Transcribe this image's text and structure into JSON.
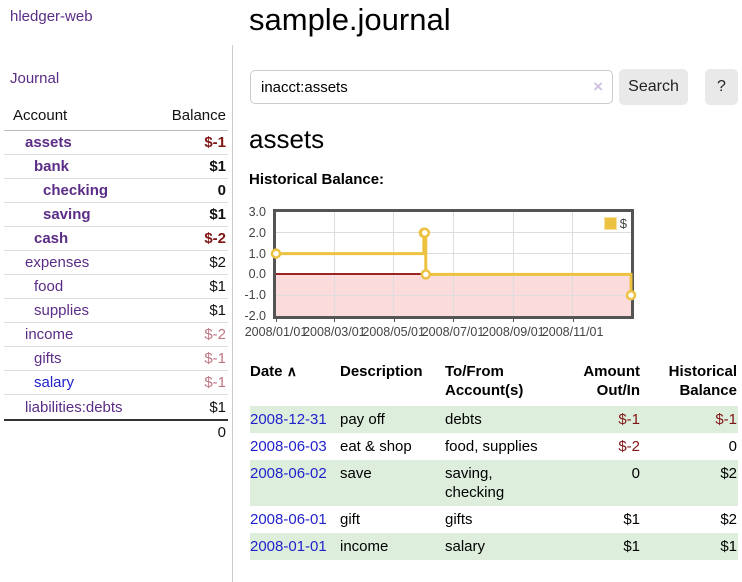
{
  "app": {
    "brand": "hledger-web",
    "nav": {
      "journal": "Journal"
    }
  },
  "colors": {
    "brand_purple": "#5b2d86",
    "link_blue": "#2222cc",
    "negative_strong": "#801515",
    "negative_soft": "#c07684",
    "row_green": "#ddeedd",
    "chart_line": "#edc240",
    "chart_negative_fill": "#fbdbdb",
    "chart_zero_line": "#8b0000"
  },
  "sidebar": {
    "headers": {
      "account": "Account",
      "balance": "Balance"
    },
    "accounts": [
      {
        "name": "assets",
        "balance": "$-1",
        "indent": 0,
        "emph": true,
        "name_style": "purple",
        "bal_style": "negstrong"
      },
      {
        "name": "bank",
        "balance": "$1",
        "indent": 1,
        "emph": true,
        "name_style": "purple",
        "bal_style": "plain"
      },
      {
        "name": "checking",
        "balance": "0",
        "indent": 2,
        "emph": true,
        "name_style": "purple",
        "bal_style": "plain"
      },
      {
        "name": "saving",
        "balance": "$1",
        "indent": 2,
        "emph": true,
        "name_style": "purple",
        "bal_style": "plain"
      },
      {
        "name": "cash",
        "balance": "$-2",
        "indent": 1,
        "emph": true,
        "name_style": "purple",
        "bal_style": "negstrong"
      },
      {
        "name": "expenses",
        "balance": "$2",
        "indent": 0,
        "emph": false,
        "name_style": "purple",
        "bal_style": "plain"
      },
      {
        "name": "food",
        "balance": "$1",
        "indent": 1,
        "emph": false,
        "name_style": "purple",
        "bal_style": "plain"
      },
      {
        "name": "supplies",
        "balance": "$1",
        "indent": 1,
        "emph": false,
        "name_style": "purple",
        "bal_style": "plain"
      },
      {
        "name": "income",
        "balance": "$-2",
        "indent": 0,
        "emph": false,
        "name_style": "purple",
        "bal_style": "negsoft"
      },
      {
        "name": "gifts",
        "balance": "$-1",
        "indent": 1,
        "emph": false,
        "name_style": "purple",
        "bal_style": "negsoft"
      },
      {
        "name": "salary",
        "balance": "$-1",
        "indent": 1,
        "emph": false,
        "name_style": "blue",
        "bal_style": "negsoft"
      },
      {
        "name": "liabilities:debts",
        "balance": "$1",
        "indent": 0,
        "emph": false,
        "name_style": "purple",
        "bal_style": "plain"
      }
    ],
    "total": "0"
  },
  "header": {
    "title": "sample.journal"
  },
  "search": {
    "value": "inacct:assets",
    "clear_icon": "×",
    "button_label": "Search",
    "help_label": "?"
  },
  "account_page": {
    "heading": "assets",
    "chart_title": "Historical Balance:"
  },
  "chart_data": {
    "type": "line",
    "step": true,
    "title": "Historical Balance:",
    "legend": {
      "position": "top-right",
      "label": "$"
    },
    "grid": true,
    "xrange": [
      "2008-01-01",
      "2008-12-31"
    ],
    "ylim": [
      -2,
      3
    ],
    "yticks": [
      3.0,
      2.0,
      1.0,
      0.0,
      -1.0,
      -2.0
    ],
    "xticks": [
      "2008/01/01",
      "2008/03/01",
      "2008/05/01",
      "2008/07/01",
      "2008/09/01",
      "2008/11/01"
    ],
    "series": [
      {
        "name": "$",
        "color": "#edc240",
        "points": [
          {
            "date": "2008-01-01",
            "value": 1
          },
          {
            "date": "2008-06-01",
            "value": 2
          },
          {
            "date": "2008-06-02",
            "value": 2
          },
          {
            "date": "2008-06-03",
            "value": 0
          },
          {
            "date": "2008-12-31",
            "value": -1
          }
        ]
      }
    ],
    "negative_region_fill": "#fbdbdb",
    "zero_line_color": "#8b0000"
  },
  "register": {
    "headers": {
      "date": "Date",
      "sort_indicator": "∧",
      "description": "Description",
      "accounts": "To/From Account(s)",
      "amount": "Amount Out/In",
      "balance": "Historical Balance"
    },
    "rows": [
      {
        "date": "2008-12-31",
        "description": "pay off",
        "accounts": "debts",
        "amount": "$-1",
        "balance": "$-1",
        "amount_neg": true,
        "balance_neg": true,
        "green": true
      },
      {
        "date": "2008-06-03",
        "description": "eat & shop",
        "accounts": "food, supplies",
        "amount": "$-2",
        "balance": "0",
        "amount_neg": true,
        "balance_neg": false,
        "green": false
      },
      {
        "date": "2008-06-02",
        "description": "save",
        "accounts": "saving, checking",
        "amount": "0",
        "balance": "$2",
        "amount_neg": false,
        "balance_neg": false,
        "green": true
      },
      {
        "date": "2008-06-01",
        "description": "gift",
        "accounts": "gifts",
        "amount": "$1",
        "balance": "$2",
        "amount_neg": false,
        "balance_neg": false,
        "green": false
      },
      {
        "date": "2008-01-01",
        "description": "income",
        "accounts": "salary",
        "amount": "$1",
        "balance": "$1",
        "amount_neg": false,
        "balance_neg": false,
        "green": true
      }
    ]
  }
}
